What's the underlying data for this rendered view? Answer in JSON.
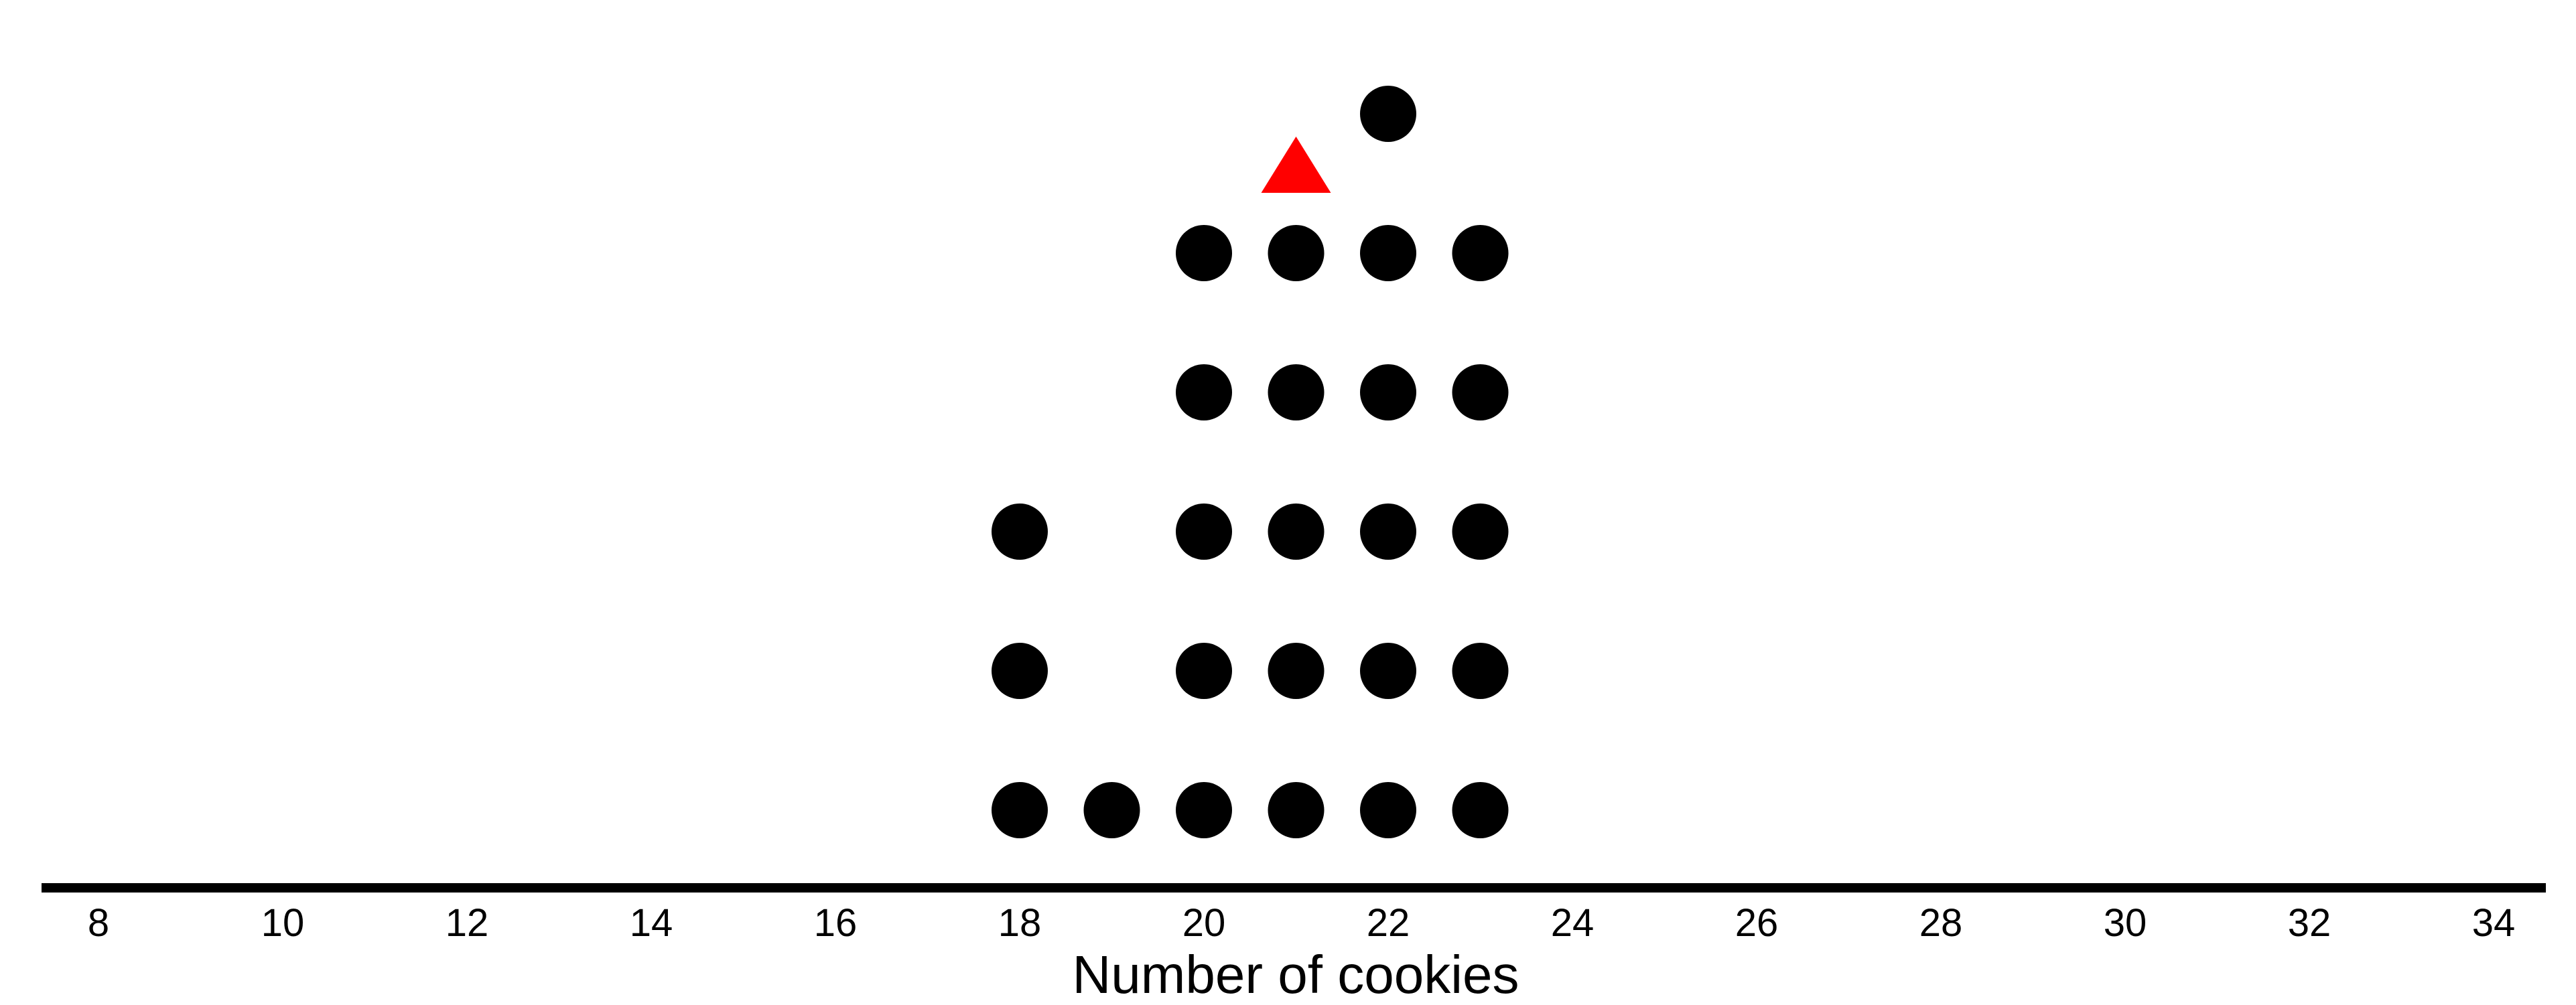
{
  "chart_data": {
    "type": "scatter",
    "subtype": "dot-plot",
    "xlabel": "Number of cookies",
    "xlim": [
      8,
      34
    ],
    "xticks": [
      8,
      10,
      12,
      14,
      16,
      18,
      20,
      22,
      24,
      26,
      28,
      30,
      32,
      34
    ],
    "series": [
      {
        "marker": "circle",
        "color": "#000000",
        "counts": [
          {
            "x": 18,
            "count": 3
          },
          {
            "x": 19,
            "count": 1
          },
          {
            "x": 20,
            "count": 5
          },
          {
            "x": 21,
            "count": 5
          },
          {
            "x": 22,
            "count": 6
          },
          {
            "x": 23,
            "count": 5
          }
        ]
      }
    ],
    "marker_triangle": {
      "x": 21,
      "color": "#ff0000"
    },
    "grid": false
  }
}
